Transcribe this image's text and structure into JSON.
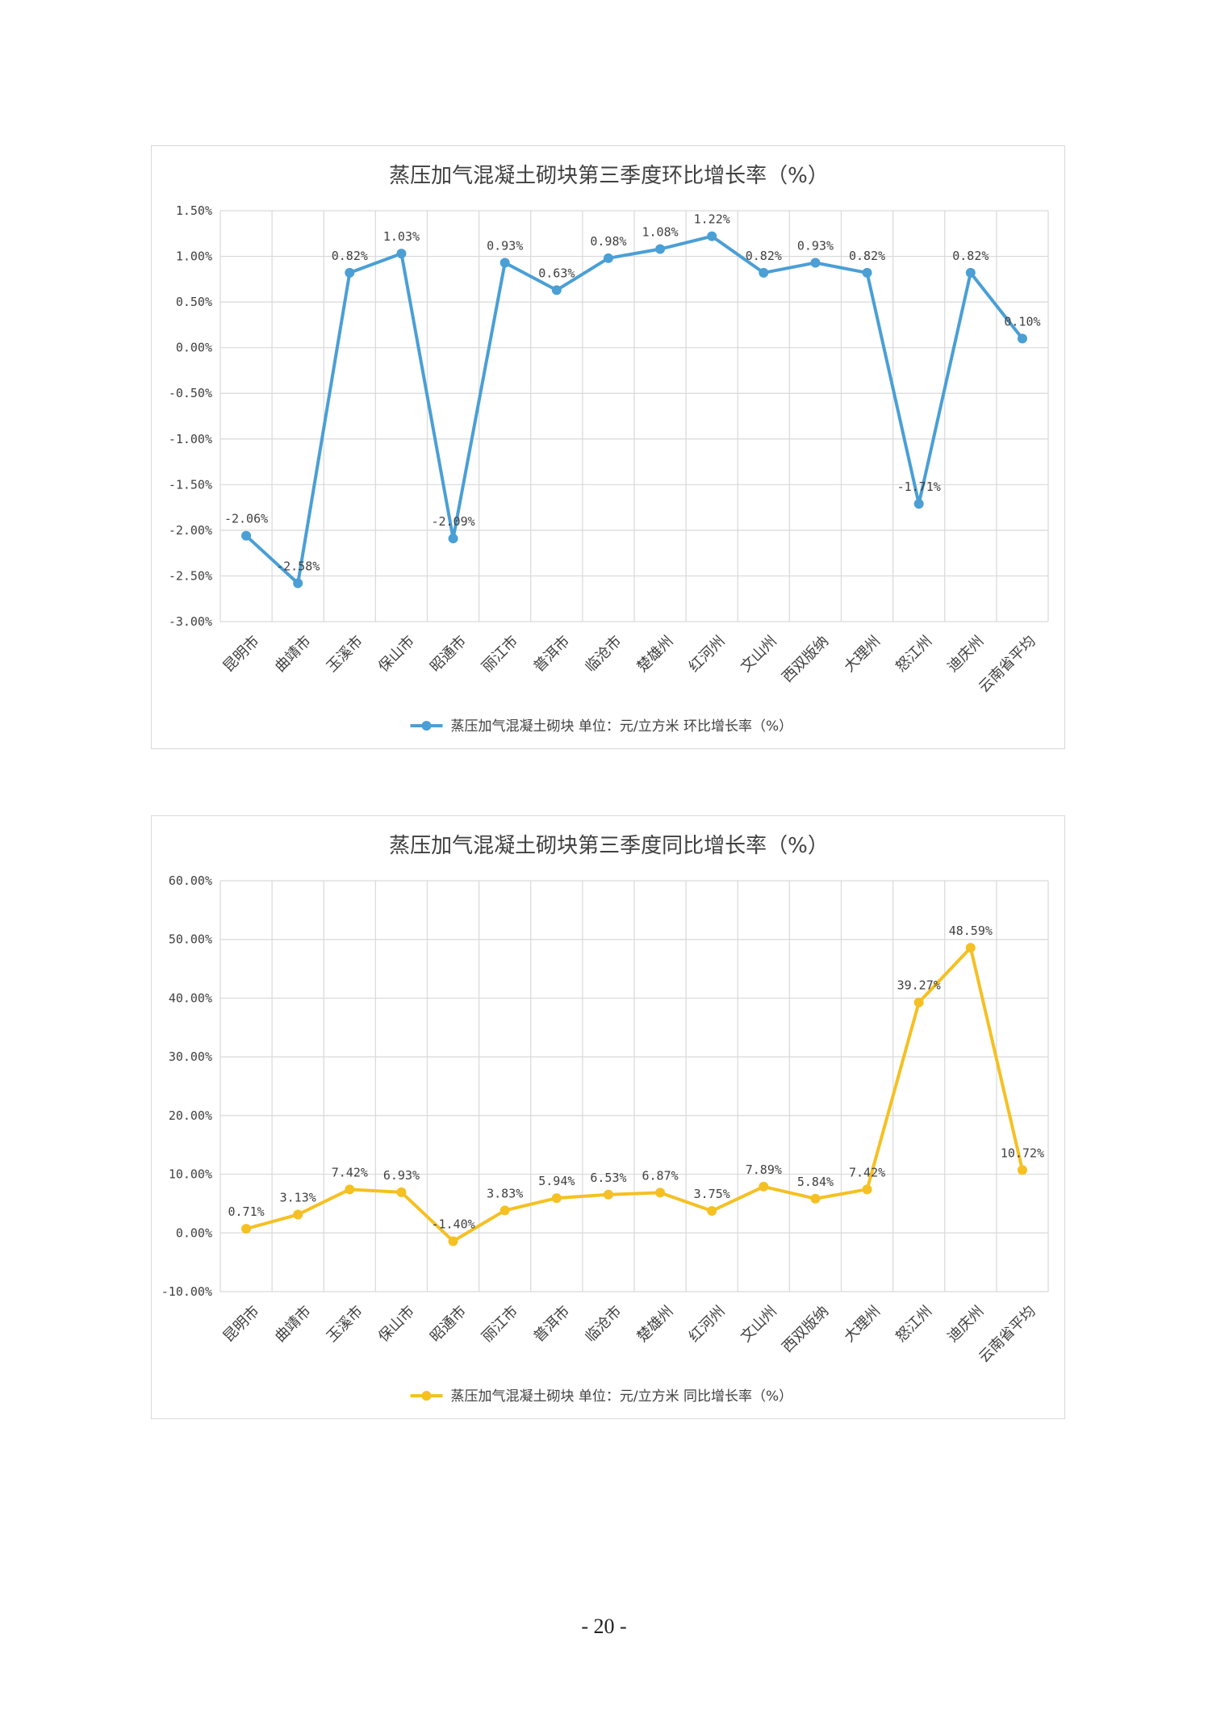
{
  "page_number": "- 20 -",
  "chart_data": [
    {
      "type": "line",
      "title": "蒸压加气混凝土砌块第三季度环比增长率（%）",
      "categories": [
        "昆明市",
        "曲靖市",
        "玉溪市",
        "保山市",
        "昭通市",
        "丽江市",
        "普洱市",
        "临沧市",
        "楚雄州",
        "红河州",
        "文山州",
        "西双版纳",
        "大理州",
        "怒江州",
        "迪庆州",
        "云南省平均"
      ],
      "series": [
        {
          "name": "蒸压加气混凝土砌块 单位：元/立方米 环比增长率（%）",
          "values": [
            -2.06,
            -2.58,
            0.82,
            1.03,
            -2.09,
            0.93,
            0.63,
            0.98,
            1.08,
            1.22,
            0.82,
            0.93,
            0.82,
            -1.71,
            0.82,
            0.1
          ],
          "labels": [
            "-2.06%",
            "-2.58%",
            "0.82%",
            "1.03%",
            "-2.09%",
            "0.93%",
            "0.63%",
            "0.98%",
            "1.08%",
            "1.22%",
            "0.82%",
            "0.93%",
            "0.82%",
            "-1.71%",
            "0.82%",
            "0.10%"
          ],
          "color": "#4a9fd5"
        }
      ],
      "yticks": [
        "1.50%",
        "1.00%",
        "0.50%",
        "0.00%",
        "-0.50%",
        "-1.00%",
        "-1.50%",
        "-2.00%",
        "-2.50%",
        "-3.00%"
      ],
      "ylim": [
        -3.0,
        1.5
      ],
      "grid": true,
      "legend": "bottom"
    },
    {
      "type": "line",
      "title": "蒸压加气混凝土砌块第三季度同比增长率（%）",
      "categories": [
        "昆明市",
        "曲靖市",
        "玉溪市",
        "保山市",
        "昭通市",
        "丽江市",
        "普洱市",
        "临沧市",
        "楚雄州",
        "红河州",
        "文山州",
        "西双版纳",
        "大理州",
        "怒江州",
        "迪庆州",
        "云南省平均"
      ],
      "series": [
        {
          "name": "蒸压加气混凝土砌块 单位：元/立方米 同比增长率（%）",
          "values": [
            0.71,
            3.13,
            7.42,
            6.93,
            -1.4,
            3.83,
            5.94,
            6.53,
            6.87,
            3.75,
            7.89,
            5.84,
            7.42,
            39.27,
            48.59,
            10.72
          ],
          "labels": [
            "0.71%",
            "3.13%",
            "7.42%",
            "6.93%",
            "-1.40%",
            "3.83%",
            "5.94%",
            "6.53%",
            "6.87%",
            "3.75%",
            "7.89%",
            "5.84%",
            "7.42%",
            "39.27%",
            "48.59%",
            "10.72%"
          ],
          "color": "#f5c022"
        }
      ],
      "yticks": [
        "60.00%",
        "50.00%",
        "40.00%",
        "30.00%",
        "20.00%",
        "10.00%",
        "0.00%",
        "-10.00%"
      ],
      "ylim": [
        -10,
        60
      ],
      "grid": true,
      "legend": "bottom"
    }
  ]
}
